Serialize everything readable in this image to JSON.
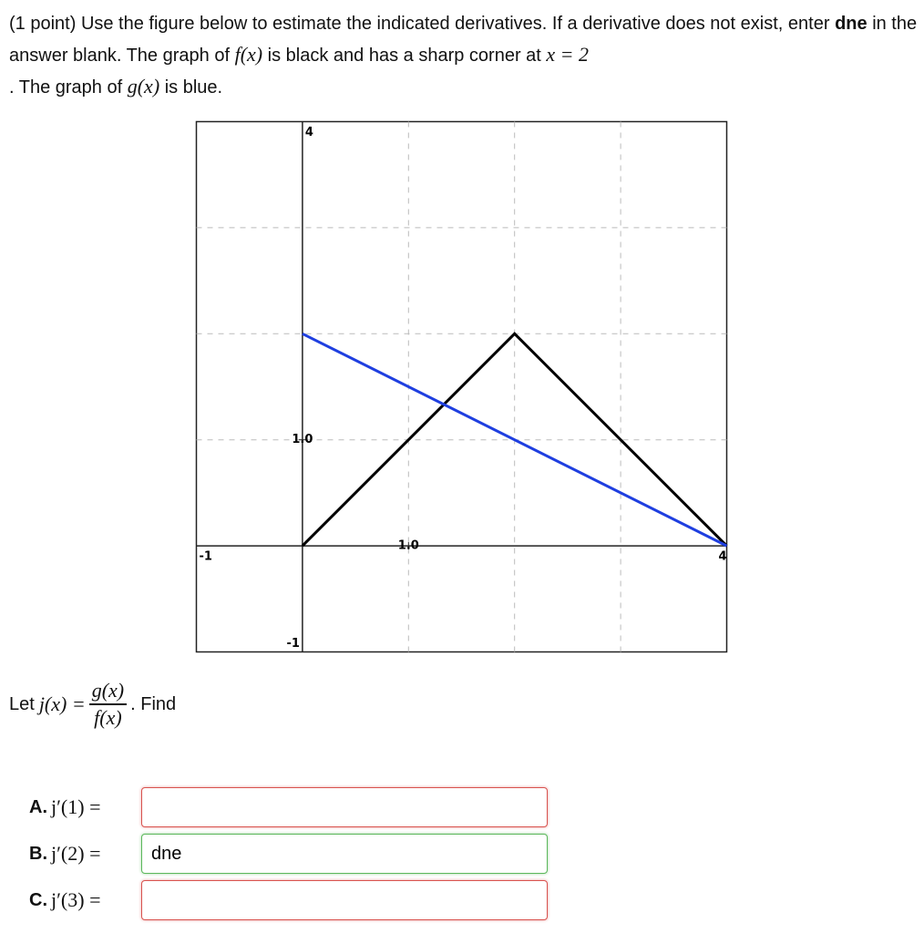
{
  "problem": {
    "points": "(1 point)",
    "text_1": "Use the figure below to estimate the indicated derivatives. If a derivative does not exist, enter",
    "bold_1": "dne",
    "text_2": "in the answer blank. The graph of",
    "math_f": "f(x)",
    "text_3": "is black and has a sharp corner at",
    "math_corner": "x = 2",
    "text_4": ". The graph of",
    "math_g": "g(x)",
    "text_5": "is blue."
  },
  "chart_data": {
    "type": "line",
    "xlim": [
      -1,
      4
    ],
    "ylim": [
      -1,
      4
    ],
    "xticks": [
      -1,
      {
        "value": 1,
        "label": "1.0"
      },
      4
    ],
    "yticks": [
      -1,
      {
        "value": 1,
        "label": "1.0"
      },
      4
    ],
    "xgrid": [
      1,
      2,
      3
    ],
    "ygrid": [
      1,
      2,
      3
    ],
    "series": [
      {
        "name": "f(x)",
        "color": "#000000",
        "x": [
          0,
          2,
          4
        ],
        "values": [
          0,
          2,
          0
        ]
      },
      {
        "name": "g(x)",
        "color": "#1f3fe0",
        "x": [
          0,
          4
        ],
        "values": [
          2,
          0
        ]
      }
    ]
  },
  "definition": {
    "lead": "Let",
    "lhs": "j(x) =",
    "numerator": "g(x)",
    "denominator": "f(x)",
    "trail": ". Find"
  },
  "parts": [
    {
      "label": "A.",
      "expr": "j′(1) ="
    },
    {
      "label": "B.",
      "expr": "j′(2) =",
      "answer": "dne"
    },
    {
      "label": "C.",
      "expr": "j′(3) ="
    }
  ]
}
